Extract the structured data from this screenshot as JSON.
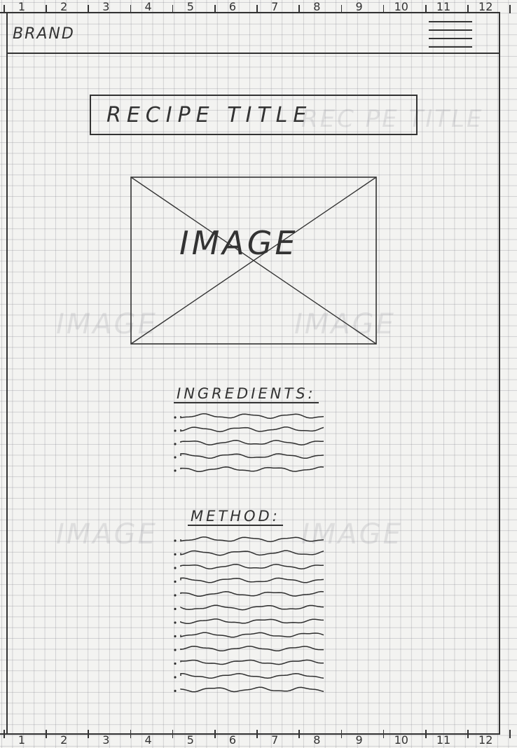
{
  "top_ruler": [
    "1",
    "2",
    "3",
    "4",
    "5",
    "6",
    "7",
    "8",
    "9",
    "10",
    "11",
    "12"
  ],
  "bottom_ruler": [
    "1",
    "2",
    "3",
    "4",
    "5",
    "6",
    "7",
    "8",
    "9",
    "10",
    "11",
    "12"
  ],
  "header": {
    "brand": "BRAND",
    "menu_icon": "hamburger-menu-icon"
  },
  "recipe": {
    "title": "RECIPE TITLE",
    "image_label": "IMAGE",
    "ingredients_heading": "INGREDIENTS:",
    "ingredients_lines": 5,
    "method_heading": "METHOD:",
    "method_lines": 12
  }
}
